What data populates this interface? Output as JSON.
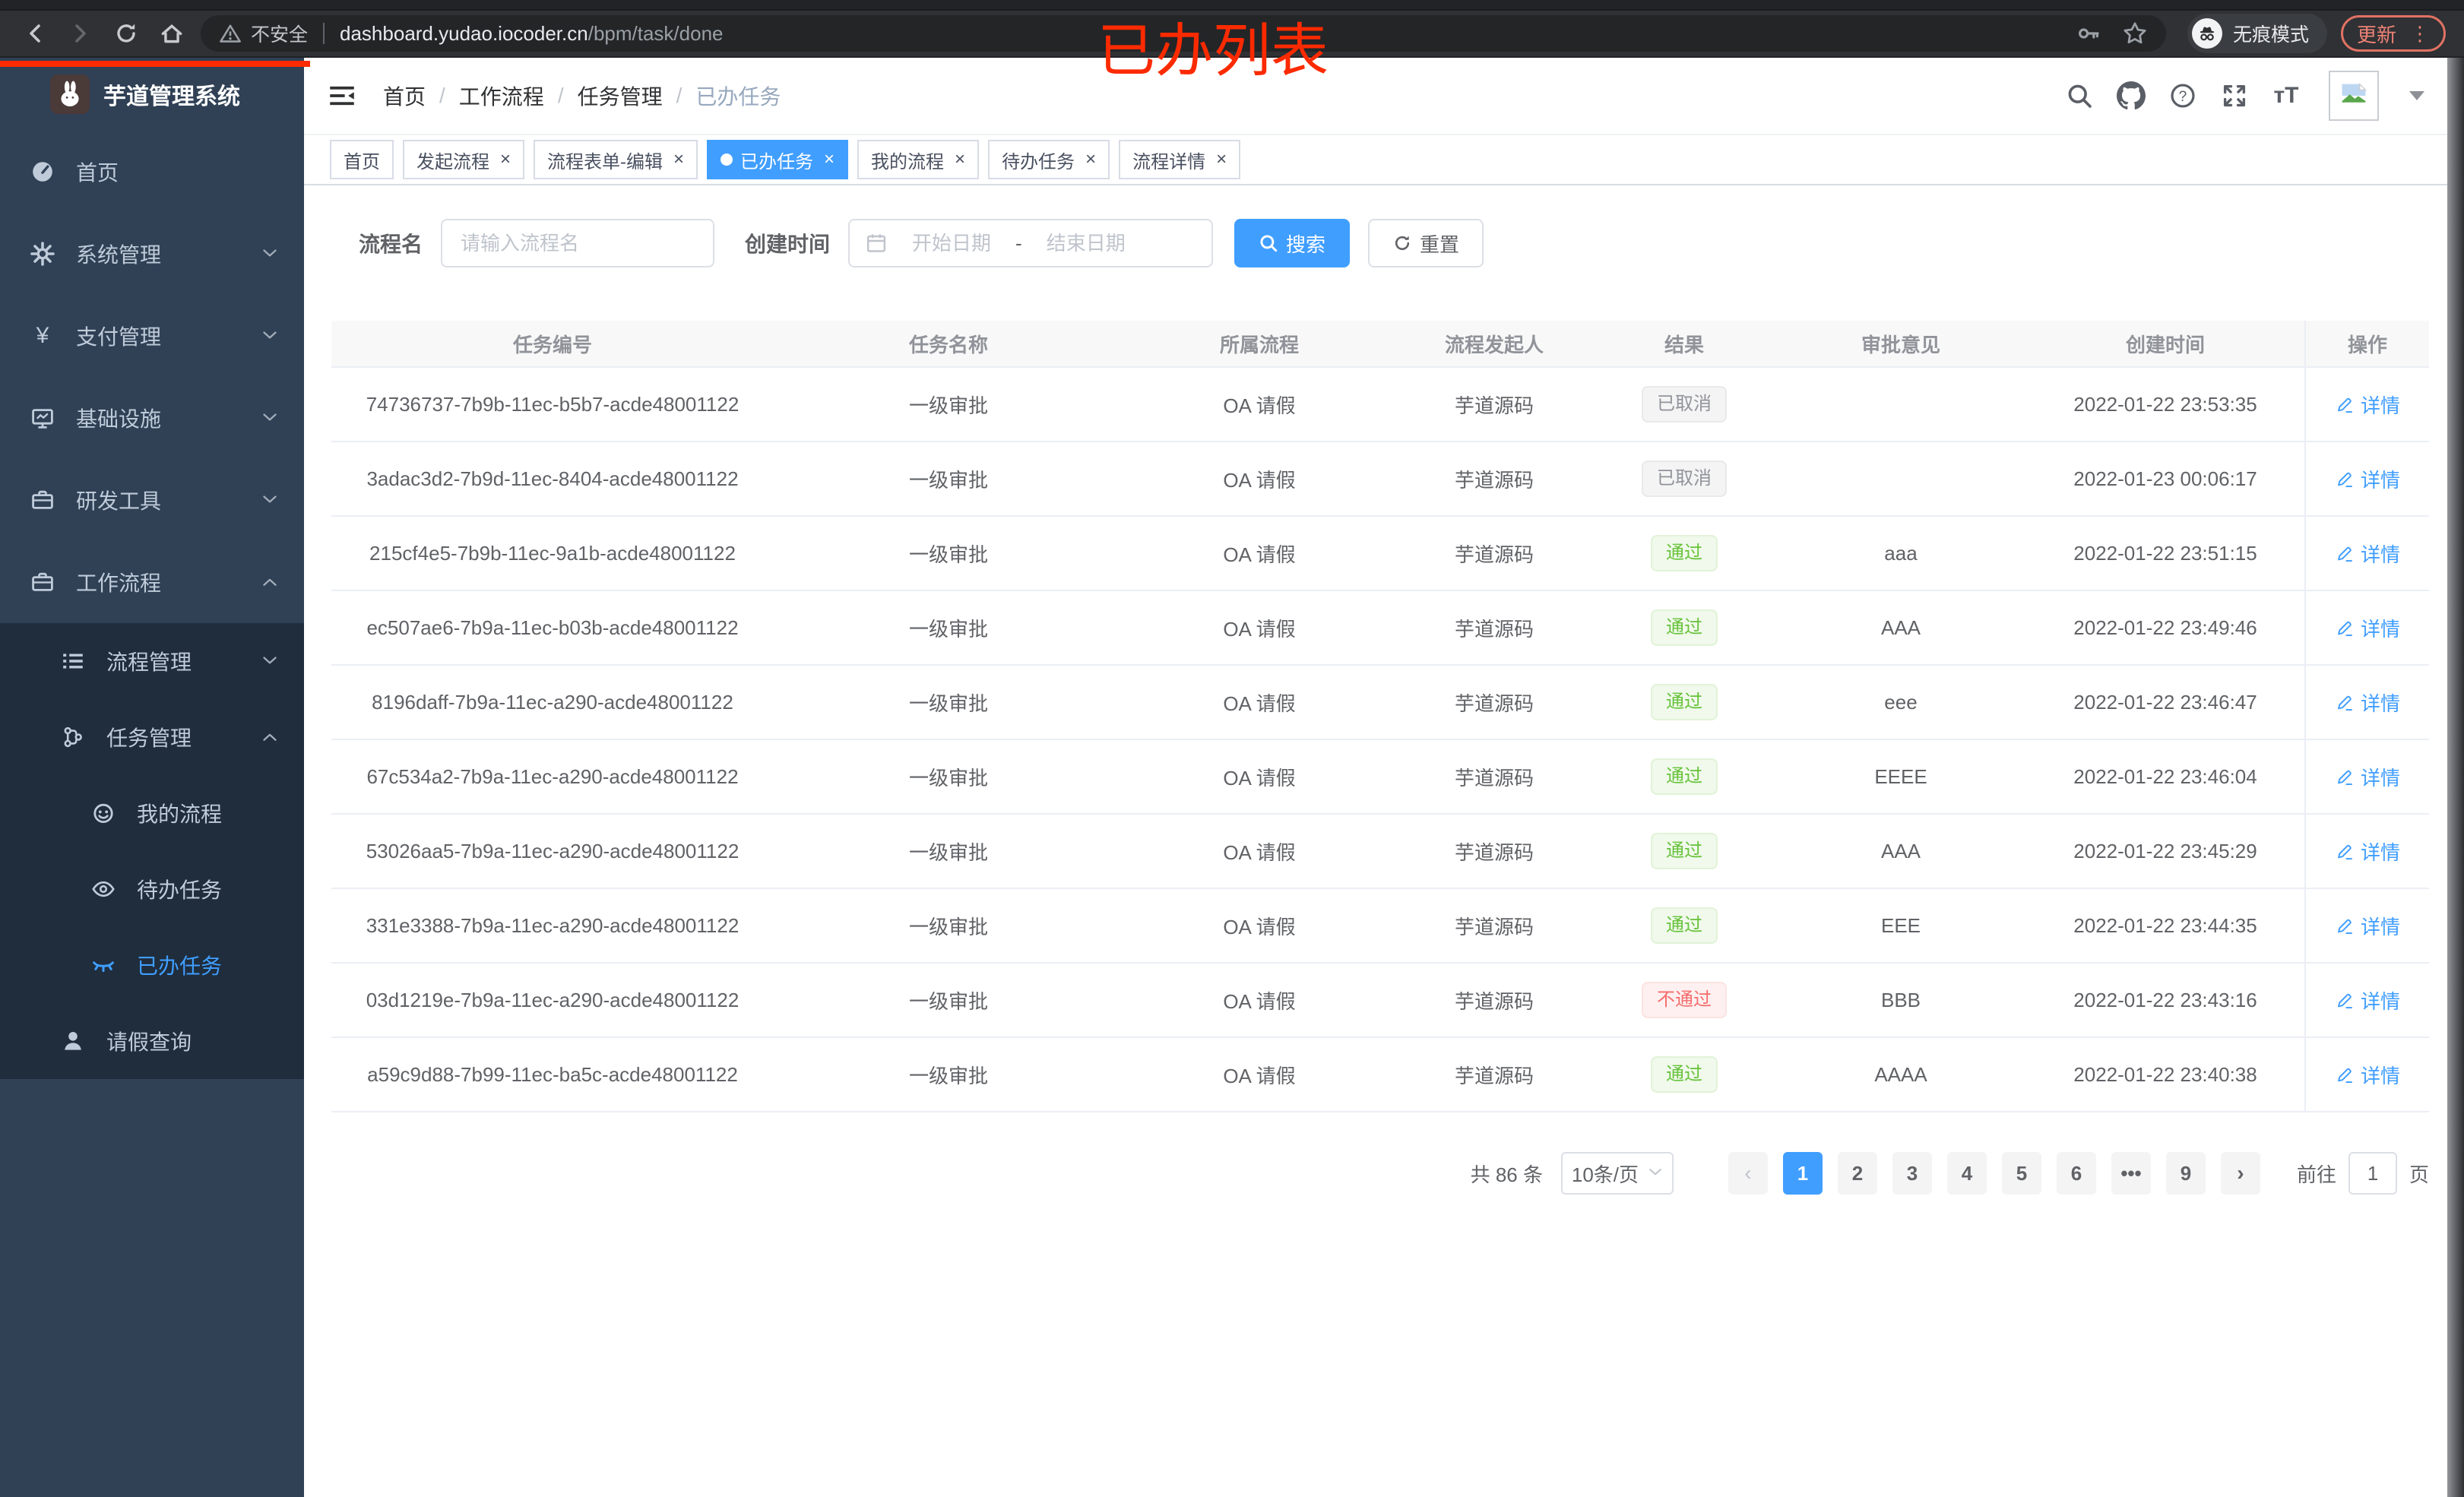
{
  "browser": {
    "security_label": "不安全",
    "url_host": "dashboard.yudao.iocoder.cn",
    "url_path": "/bpm/task/done",
    "incognito_label": "无痕模式",
    "update_label": "更新"
  },
  "annotation": {
    "title": "已办列表"
  },
  "sidebar": {
    "app_title": "芋道管理系统",
    "items": [
      {
        "key": "home",
        "label": "首页",
        "icon": "dashboard-icon",
        "level": 0,
        "sub": false,
        "arrow": null,
        "active": false
      },
      {
        "key": "system",
        "label": "系统管理",
        "icon": "gear-icon",
        "level": 0,
        "sub": false,
        "arrow": "down",
        "active": false
      },
      {
        "key": "payment",
        "label": "支付管理",
        "icon": "yen-icon",
        "level": 0,
        "sub": false,
        "arrow": "down",
        "active": false
      },
      {
        "key": "infra",
        "label": "基础设施",
        "icon": "monitor-icon",
        "level": 0,
        "sub": false,
        "arrow": "down",
        "active": false
      },
      {
        "key": "devtools",
        "label": "研发工具",
        "icon": "toolbox-icon",
        "level": 0,
        "sub": false,
        "arrow": "down",
        "active": false
      },
      {
        "key": "workflow",
        "label": "工作流程",
        "icon": "briefcase-icon",
        "level": 0,
        "sub": false,
        "arrow": "up",
        "active": false
      },
      {
        "key": "process-mgmt",
        "label": "流程管理",
        "icon": "process-list-icon",
        "level": 1,
        "sub": true,
        "arrow": "down",
        "active": false
      },
      {
        "key": "task-mgmt",
        "label": "任务管理",
        "icon": "task-tree-icon",
        "level": 1,
        "sub": true,
        "arrow": "up",
        "active": false
      },
      {
        "key": "my-process",
        "label": "我的流程",
        "icon": "face-icon",
        "level": 2,
        "sub": true,
        "arrow": null,
        "active": false
      },
      {
        "key": "todo-tasks",
        "label": "待办任务",
        "icon": "eye-open-icon",
        "level": 2,
        "sub": true,
        "arrow": null,
        "active": false
      },
      {
        "key": "done-tasks",
        "label": "已办任务",
        "icon": "eye-closed-icon",
        "level": 2,
        "sub": true,
        "arrow": null,
        "active": true
      },
      {
        "key": "leave-query",
        "label": "请假查询",
        "icon": "user-icon",
        "level": 1,
        "sub": true,
        "arrow": null,
        "active": false
      }
    ]
  },
  "header": {
    "breadcrumb": [
      "首页",
      "工作流程",
      "任务管理",
      "已办任务"
    ]
  },
  "tabs": [
    {
      "key": "home",
      "label": "首页",
      "closable": false,
      "active": false
    },
    {
      "key": "start-process",
      "label": "发起流程",
      "closable": true,
      "active": false
    },
    {
      "key": "form-edit",
      "label": "流程表单-编辑",
      "closable": true,
      "active": false
    },
    {
      "key": "done-tasks",
      "label": "已办任务",
      "closable": true,
      "active": true
    },
    {
      "key": "my-process",
      "label": "我的流程",
      "closable": true,
      "active": false
    },
    {
      "key": "todo-tasks",
      "label": "待办任务",
      "closable": true,
      "active": false
    },
    {
      "key": "process-detail",
      "label": "流程详情",
      "closable": true,
      "active": false
    }
  ],
  "filter": {
    "name_label": "流程名",
    "name_placeholder": "请输入流程名",
    "time_label": "创建时间",
    "start_placeholder": "开始日期",
    "range_separator": "-",
    "end_placeholder": "结束日期",
    "search_label": "搜索",
    "reset_label": "重置"
  },
  "table": {
    "headers": [
      "任务编号",
      "任务名称",
      "所属流程",
      "流程发起人",
      "结果",
      "审批意见",
      "创建时间",
      "操作"
    ],
    "detail_label": "详情",
    "rows": [
      {
        "id": "74736737-7b9b-11ec-b5b7-acde48001122",
        "name": "一级审批",
        "process": "OA 请假",
        "starter": "芋道源码",
        "result": "已取消",
        "result_type": "info",
        "comment": "",
        "created": "2022-01-22 23:53:35"
      },
      {
        "id": "3adac3d2-7b9d-11ec-8404-acde48001122",
        "name": "一级审批",
        "process": "OA 请假",
        "starter": "芋道源码",
        "result": "已取消",
        "result_type": "info",
        "comment": "",
        "created": "2022-01-23 00:06:17"
      },
      {
        "id": "215cf4e5-7b9b-11ec-9a1b-acde48001122",
        "name": "一级审批",
        "process": "OA 请假",
        "starter": "芋道源码",
        "result": "通过",
        "result_type": "success",
        "comment": "aaa",
        "created": "2022-01-22 23:51:15"
      },
      {
        "id": "ec507ae6-7b9a-11ec-b03b-acde48001122",
        "name": "一级审批",
        "process": "OA 请假",
        "starter": "芋道源码",
        "result": "通过",
        "result_type": "success",
        "comment": "AAA",
        "created": "2022-01-22 23:49:46"
      },
      {
        "id": "8196daff-7b9a-11ec-a290-acde48001122",
        "name": "一级审批",
        "process": "OA 请假",
        "starter": "芋道源码",
        "result": "通过",
        "result_type": "success",
        "comment": "eee",
        "created": "2022-01-22 23:46:47"
      },
      {
        "id": "67c534a2-7b9a-11ec-a290-acde48001122",
        "name": "一级审批",
        "process": "OA 请假",
        "starter": "芋道源码",
        "result": "通过",
        "result_type": "success",
        "comment": "EEEE",
        "created": "2022-01-22 23:46:04"
      },
      {
        "id": "53026aa5-7b9a-11ec-a290-acde48001122",
        "name": "一级审批",
        "process": "OA 请假",
        "starter": "芋道源码",
        "result": "通过",
        "result_type": "success",
        "comment": "AAA",
        "created": "2022-01-22 23:45:29"
      },
      {
        "id": "331e3388-7b9a-11ec-a290-acde48001122",
        "name": "一级审批",
        "process": "OA 请假",
        "starter": "芋道源码",
        "result": "通过",
        "result_type": "success",
        "comment": "EEE",
        "created": "2022-01-22 23:44:35"
      },
      {
        "id": "03d1219e-7b9a-11ec-a290-acde48001122",
        "name": "一级审批",
        "process": "OA 请假",
        "starter": "芋道源码",
        "result": "不通过",
        "result_type": "danger",
        "comment": "BBB",
        "created": "2022-01-22 23:43:16"
      },
      {
        "id": "a59c9d88-7b99-11ec-ba5c-acde48001122",
        "name": "一级审批",
        "process": "OA 请假",
        "starter": "芋道源码",
        "result": "通过",
        "result_type": "success",
        "comment": "AAAA",
        "created": "2022-01-22 23:40:38"
      }
    ]
  },
  "pagination": {
    "total": "共 86 条",
    "page_size": "10条/页",
    "prev": "‹",
    "next": "›",
    "pages": [
      "1",
      "2",
      "3",
      "4",
      "5",
      "6",
      "•••",
      "9"
    ],
    "active_page": "1",
    "goto_label": "前往",
    "goto_value": "1",
    "goto_unit": "页"
  },
  "colors": {
    "accent": "#409eff",
    "success": "#67c23a",
    "danger": "#f56c6c",
    "info": "#909399",
    "sidebar_bg": "#304156",
    "submenu_bg": "#1f2d3d",
    "annotation_red": "#fb2a00"
  }
}
